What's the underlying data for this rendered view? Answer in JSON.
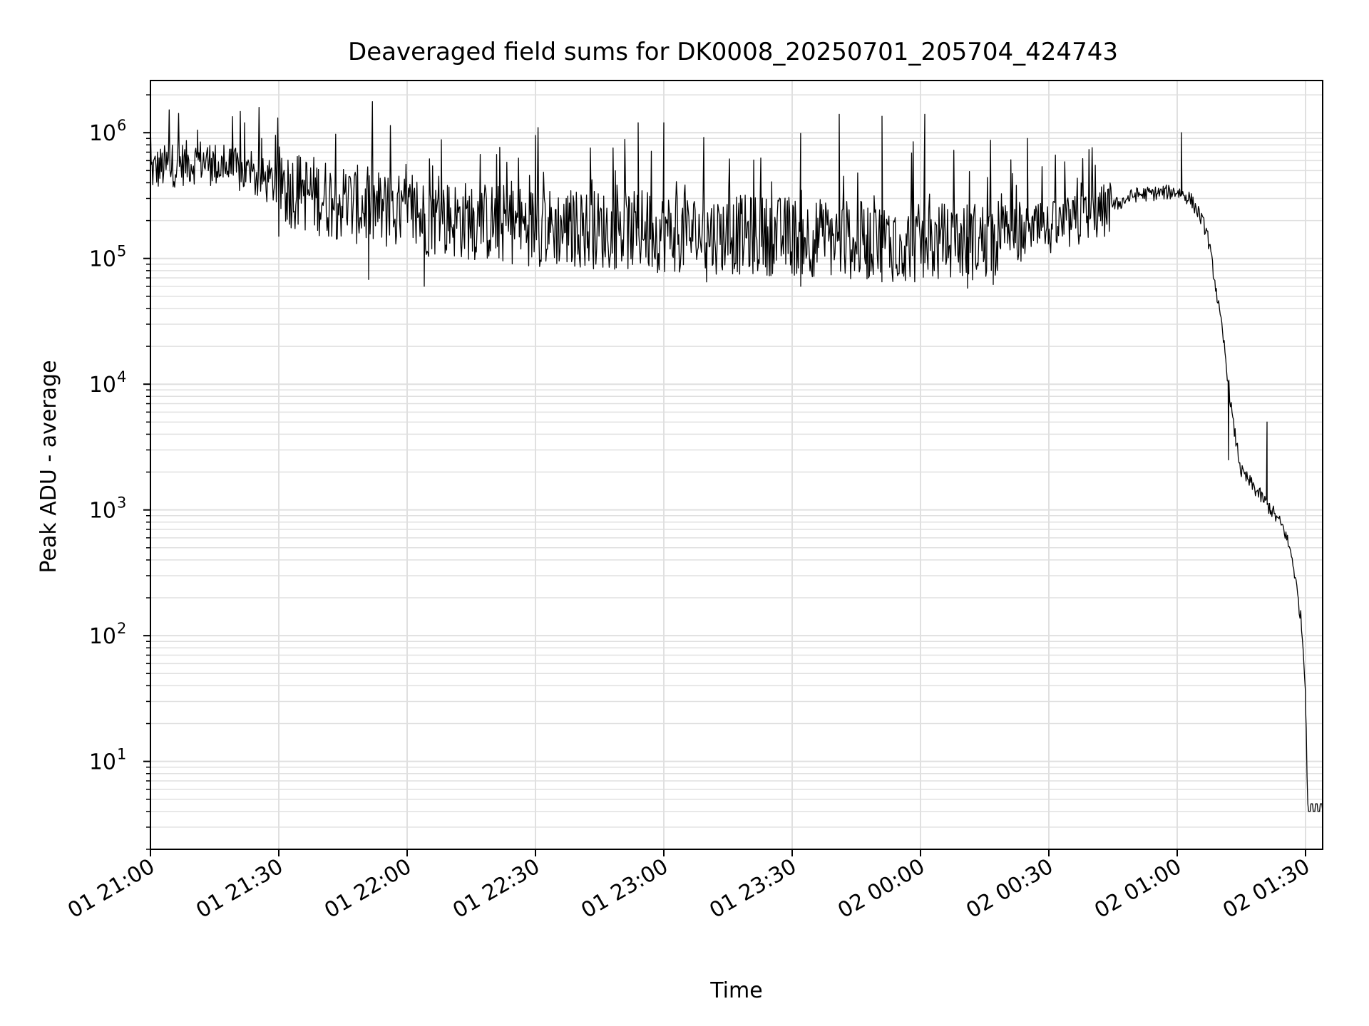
{
  "chart_data": {
    "type": "line",
    "title": "Deaveraged field sums for DK0008_20250701_205704_424743",
    "xlabel": "Time",
    "ylabel": "Peak ADU - average",
    "yscale": "log",
    "ylim": [
      2,
      2600000
    ],
    "xlim": [
      "2025-07-01 21:00",
      "2025-07-02 01:34"
    ],
    "grid": true,
    "line_color": "#000000",
    "grid_color": "#e0e0e0",
    "x_ticks": [
      {
        "label": "01 21:00",
        "time": "2025-07-01 21:00"
      },
      {
        "label": "01 21:30",
        "time": "2025-07-01 21:30"
      },
      {
        "label": "01 22:00",
        "time": "2025-07-01 22:00"
      },
      {
        "label": "01 22:30",
        "time": "2025-07-01 22:30"
      },
      {
        "label": "01 23:00",
        "time": "2025-07-01 23:00"
      },
      {
        "label": "01 23:30",
        "time": "2025-07-01 23:30"
      },
      {
        "label": "02 00:00",
        "time": "2025-07-02 00:00"
      },
      {
        "label": "02 00:30",
        "time": "2025-07-02 00:30"
      },
      {
        "label": "02 01:00",
        "time": "2025-07-02 01:00"
      },
      {
        "label": "02 01:30",
        "time": "2025-07-02 01:30"
      }
    ],
    "y_ticks": [
      {
        "base": "10",
        "exp": "1",
        "value": 10
      },
      {
        "base": "10",
        "exp": "2",
        "value": 100
      },
      {
        "base": "10",
        "exp": "3",
        "value": 1000
      },
      {
        "base": "10",
        "exp": "4",
        "value": 10000
      },
      {
        "base": "10",
        "exp": "5",
        "value": 100000
      },
      {
        "base": "10",
        "exp": "6",
        "value": 1000000
      }
    ],
    "series": [
      {
        "baseline": [
          {
            "time": "2025-07-01 21:00",
            "value": 500000
          },
          {
            "time": "2025-07-01 21:05",
            "value": 550000
          },
          {
            "time": "2025-07-01 21:12",
            "value": 600000
          },
          {
            "time": "2025-07-01 21:20",
            "value": 500000
          },
          {
            "time": "2025-07-01 21:30",
            "value": 380000
          },
          {
            "time": "2025-07-01 21:45",
            "value": 280000
          },
          {
            "time": "2025-07-01 22:00",
            "value": 220000
          },
          {
            "time": "2025-07-01 22:30",
            "value": 180000
          },
          {
            "time": "2025-07-01 23:00",
            "value": 160000
          },
          {
            "time": "2025-07-01 23:30",
            "value": 150000
          },
          {
            "time": "2025-07-02 00:00",
            "value": 130000
          },
          {
            "time": "2025-07-02 00:15",
            "value": 140000
          },
          {
            "time": "2025-07-02 00:30",
            "value": 170000
          },
          {
            "time": "2025-07-02 00:40",
            "value": 210000
          },
          {
            "time": "2025-07-02 00:45",
            "value": 260000
          },
          {
            "time": "2025-07-02 00:50",
            "value": 320000
          },
          {
            "time": "2025-07-02 01:00",
            "value": 340000
          },
          {
            "time": "2025-07-02 01:03",
            "value": 300000
          },
          {
            "time": "2025-07-02 01:05",
            "value": 230000
          },
          {
            "time": "2025-07-02 01:07",
            "value": 160000
          },
          {
            "time": "2025-07-02 01:09",
            "value": 60000
          },
          {
            "time": "2025-07-02 01:11",
            "value": 20000
          },
          {
            "time": "2025-07-02 01:13",
            "value": 5000
          },
          {
            "time": "2025-07-02 01:15",
            "value": 2000
          },
          {
            "time": "2025-07-02 01:18",
            "value": 1500
          },
          {
            "time": "2025-07-02 01:22",
            "value": 1000
          },
          {
            "time": "2025-07-02 01:25",
            "value": 700
          },
          {
            "time": "2025-07-02 01:27",
            "value": 400
          },
          {
            "time": "2025-07-02 01:29",
            "value": 130
          },
          {
            "time": "2025-07-02 01:30",
            "value": 40
          },
          {
            "time": "2025-07-02 01:30:30",
            "value": 4
          },
          {
            "time": "2025-07-02 01:34",
            "value": 4
          }
        ],
        "spikes": [
          {
            "time": "2025-07-01 21:00",
            "value": 1200000
          },
          {
            "time": "2025-07-01 21:11",
            "value": 1050000
          },
          {
            "time": "2025-07-01 21:22",
            "value": 1200000
          },
          {
            "time": "2025-07-01 21:26",
            "value": 900000
          },
          {
            "time": "2025-07-01 22:08",
            "value": 880000
          },
          {
            "time": "2025-07-01 22:30",
            "value": 950000
          },
          {
            "time": "2025-07-01 22:54",
            "value": 1200000
          },
          {
            "time": "2025-07-01 23:00",
            "value": 1200000
          },
          {
            "time": "2025-07-01 23:41",
            "value": 1400000
          },
          {
            "time": "2025-07-01 23:51",
            "value": 1350000
          },
          {
            "time": "2025-07-02 00:01",
            "value": 1400000
          },
          {
            "time": "2025-07-02 00:25",
            "value": 900000
          },
          {
            "time": "2025-07-02 01:01",
            "value": 1000000
          },
          {
            "time": "2025-07-02 01:21",
            "value": 5000
          }
        ],
        "dips": [
          {
            "time": "2025-07-01 21:30",
            "value": 150000
          },
          {
            "time": "2025-07-01 21:51",
            "value": 68000
          },
          {
            "time": "2025-07-01 22:04",
            "value": 60000
          },
          {
            "time": "2025-07-01 23:10",
            "value": 65000
          },
          {
            "time": "2025-07-01 23:32",
            "value": 60000
          },
          {
            "time": "2025-07-02 00:11",
            "value": 58000
          },
          {
            "time": "2025-07-02 00:17",
            "value": 62000
          },
          {
            "time": "2025-07-02 01:12",
            "value": 2500
          },
          {
            "time": "2025-07-02 01:30",
            "value": 27
          }
        ]
      }
    ]
  }
}
